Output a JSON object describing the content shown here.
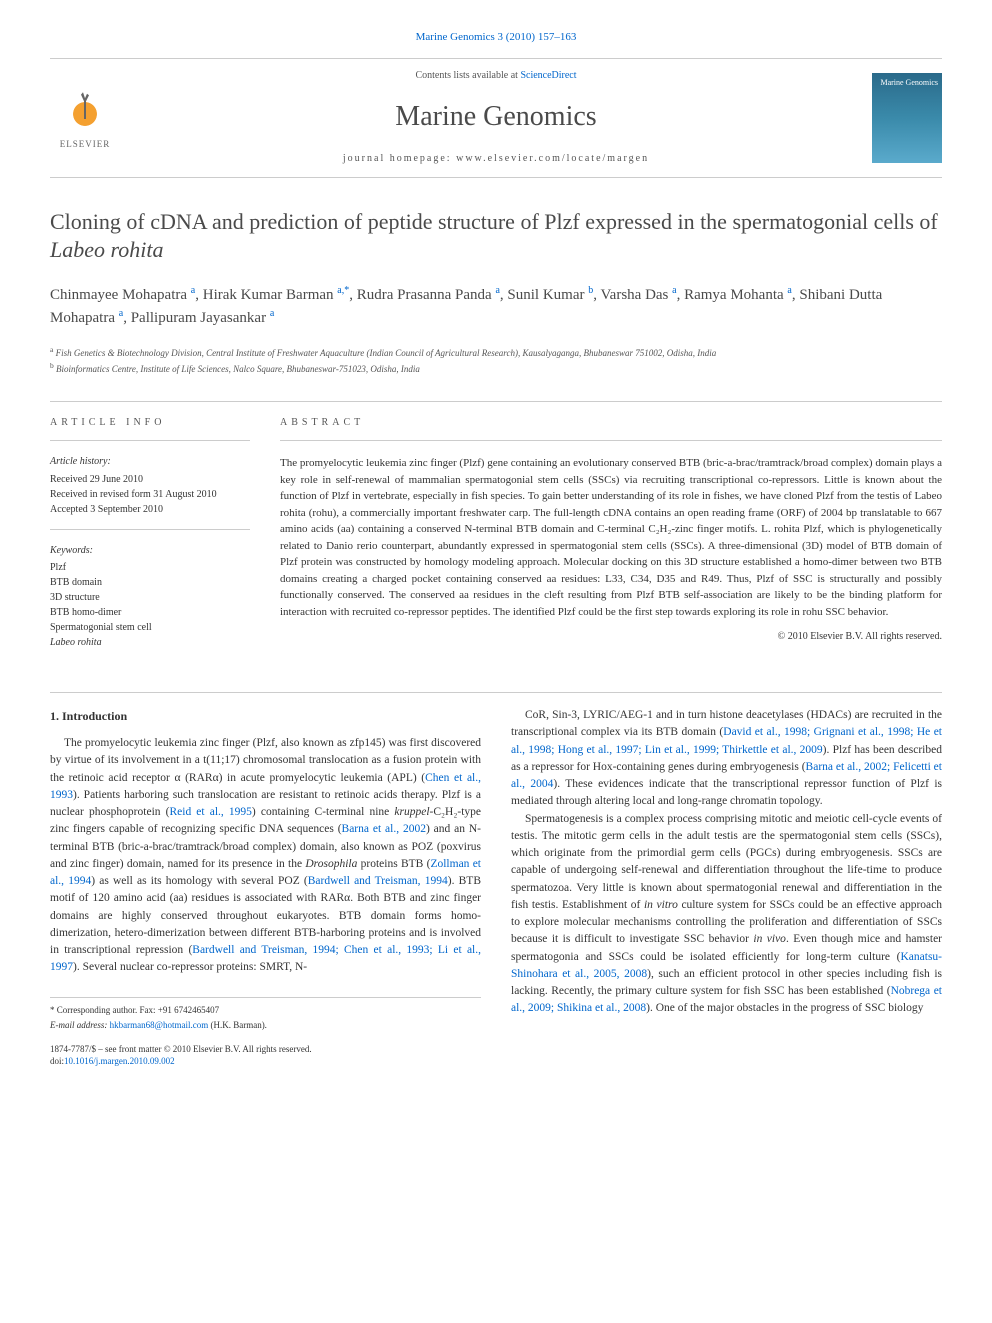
{
  "top_link": "Marine Genomics 3 (2010) 157–163",
  "header": {
    "contents_line_pre": "Contents lists available at ",
    "contents_line_link": "ScienceDirect",
    "journal_name": "Marine Genomics",
    "homepage_label": "journal homepage: ",
    "homepage_url": "www.elsevier.com/locate/margen",
    "elsevier_label": "ELSEVIER",
    "cover_label": "Marine Genomics"
  },
  "title_pre": "Cloning of cDNA and prediction of peptide structure of Plzf expressed in the spermatogonial cells of ",
  "title_em": "Labeo rohita",
  "authors_html": "Chinmayee Mohapatra <sup>a</sup>, Hirak Kumar Barman <sup>a,*</sup>, Rudra Prasanna Panda <sup>a</sup>, Sunil Kumar <sup>b</sup>, Varsha Das <sup>a</sup>, Ramya Mohanta <sup>a</sup>, Shibani Dutta Mohapatra <sup>a</sup>, Pallipuram Jayasankar <sup>a</sup>",
  "affiliations": {
    "a": "Fish Genetics & Biotechnology Division, Central Institute of Freshwater Aquaculture (Indian Council of Agricultural Research), Kausalyaganga, Bhubaneswar 751002, Odisha, India",
    "b": "Bioinformatics Centre, Institute of Life Sciences, Nalco Square, Bhubaneswar-751023, Odisha, India"
  },
  "article_info": {
    "heading": "ARTICLE INFO",
    "history_label": "Article history:",
    "history": "Received 29 June 2010\nReceived in revised form 31 August 2010\nAccepted 3 September 2010",
    "keywords_label": "Keywords:",
    "keywords": "Plzf\nBTB domain\n3D structure\nBTB homo-dimer\nSpermatogonial stem cell\nLabeo rohita"
  },
  "abstract": {
    "heading": "ABSTRACT",
    "text": "The promyelocytic leukemia zinc finger (Plzf) gene containing an evolutionary conserved BTB (bric-a-brac/tramtrack/broad complex) domain plays a key role in self-renewal of mammalian spermatogonial stem cells (SSCs) via recruiting transcriptional co-repressors. Little is known about the function of Plzf in vertebrate, especially in fish species. To gain better understanding of its role in fishes, we have cloned Plzf from the testis of Labeo rohita (rohu), a commercially important freshwater carp. The full-length cDNA contains an open reading frame (ORF) of 2004 bp translatable to 667 amino acids (aa) containing a conserved N-terminal BTB domain and C-terminal C₂H₂-zinc finger motifs. L. rohita Plzf, which is phylogenetically related to Danio rerio counterpart, abundantly expressed in spermatogonial stem cells (SSCs). A three-dimensional (3D) model of BTB domain of Plzf protein was constructed by homology modeling approach. Molecular docking on this 3D structure established a homo-dimer between two BTB domains creating a charged pocket containing conserved aa residues: L33, C34, D35 and R49. Thus, Plzf of SSC is structurally and possibly functionally conserved. The conserved aa residues in the cleft resulting from Plzf BTB self-association are likely to be the binding platform for interaction with recruited co-repressor peptides. The identified Plzf could be the first step towards exploring its role in rohu SSC behavior.",
    "copyright": "© 2010 Elsevier B.V. All rights reserved."
  },
  "body": {
    "section_heading": "1. Introduction",
    "col1_p1": "The promyelocytic leukemia zinc finger (Plzf, also known as zfp145) was first discovered by virtue of its involvement in a t(11;17) chromosomal translocation as a fusion protein with the retinoic acid receptor α (RARα) in acute promyelocytic leukemia (APL) (Chen et al., 1993). Patients harboring such translocation are resistant to retinoic acids therapy. Plzf is a nuclear phosphoprotein (Reid et al., 1995) containing C-terminal nine kruppel-C₂H₂-type zinc fingers capable of recognizing specific DNA sequences (Barna et al., 2002) and an N-terminal BTB (bric-a-brac/tramtrack/broad complex) domain, also known as POZ (poxvirus and zinc finger) domain, named for its presence in the Drosophila proteins BTB (Zollman et al., 1994) as well as its homology with several POZ (Bardwell and Treisman, 1994). BTB motif of 120 amino acid (aa) residues is associated with RARα. Both BTB and zinc finger domains are highly conserved throughout eukaryotes. BTB domain forms homo-dimerization, hetero-dimerization between different BTB-harboring proteins and is involved in transcriptional repression (Bardwell and Treisman, 1994; Chen et al., 1993; Li et al., 1997). Several nuclear co-repressor proteins: SMRT, N-",
    "col2_p1": "CoR, Sin-3, LYRIC/AEG-1 and in turn histone deacetylases (HDACs) are recruited in the transcriptional complex via its BTB domain (David et al., 1998; Grignani et al., 1998; He et al., 1998; Hong et al., 1997; Lin et al., 1999; Thirkettle et al., 2009). Plzf has been described as a repressor for Hox-containing genes during embryogenesis (Barna et al., 2002; Felicetti et al., 2004). These evidences indicate that the transcriptional repressor function of Plzf is mediated through altering local and long-range chromatin topology.",
    "col2_p2": "Spermatogenesis is a complex process comprising mitotic and meiotic cell-cycle events of testis. The mitotic germ cells in the adult testis are the spermatogonial stem cells (SSCs), which originate from the primordial germ cells (PGCs) during embryogenesis. SSCs are capable of undergoing self-renewal and differentiation throughout the life-time to produce spermatozoa. Very little is known about spermatogonial renewal and differentiation in the fish testis. Establishment of in vitro culture system for SSCs could be an effective approach to explore molecular mechanisms controlling the proliferation and differentiation of SSCs because it is difficult to investigate SSC behavior in vivo. Even though mice and hamster spermatogonia and SSCs could be isolated efficiently for long-term culture (Kanatsu-Shinohara et al., 2005, 2008), such an efficient protocol in other species including fish is lacking. Recently, the primary culture system for fish SSC has been established (Nobrega et al., 2009; Shikina et al., 2008). One of the major obstacles in the progress of SSC biology"
  },
  "footer": {
    "corr": "* Corresponding author. Fax: +91 6742465407",
    "email_label": "E-mail address: ",
    "email": "hkbarman68@hotmail.com",
    "email_suffix": " (H.K. Barman).",
    "issn_line": "1874-7787/$ – see front matter © 2010 Elsevier B.V. All rights reserved.",
    "doi_line": "doi:10.1016/j.margen.2010.09.002"
  },
  "colors": {
    "link": "#0066cc",
    "text": "#333333",
    "heading": "#4a4a4a",
    "rule": "#cccccc"
  }
}
